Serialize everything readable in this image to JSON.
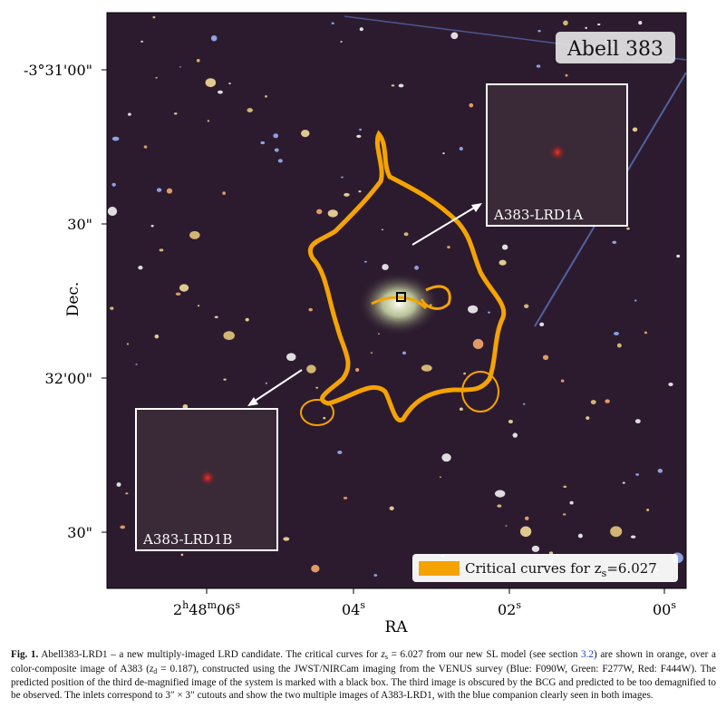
{
  "figure": {
    "title": "Abell 383",
    "y_axis": {
      "label": "Dec.",
      "ticks": [
        "-3°31'00\"",
        "30\"",
        "32'00\"",
        "30\""
      ]
    },
    "x_axis": {
      "label": "RA",
      "ticks": [
        [
          "2",
          "h",
          "48",
          "m",
          "06",
          "s"
        ],
        [
          "04",
          "s"
        ],
        [
          "02",
          "s"
        ],
        [
          "00",
          "s"
        ]
      ]
    },
    "insets": [
      {
        "label": "A383-LRD1A"
      },
      {
        "label": "A383-LRD1B"
      }
    ],
    "legend": {
      "parts": [
        "Critical curves for z",
        "s",
        "=6.027"
      ],
      "color": "#f5a300"
    }
  },
  "caption": {
    "label": "Fig. 1.",
    "body": [
      {
        "text": "Abell383-LRD1 – a new multiply-imaged LRD candidate. The critical curves for ",
        "style": "normal"
      },
      {
        "text": "z",
        "style": "italic"
      },
      {
        "text": "s",
        "style": "sub"
      },
      {
        "text": " = 6.027 from our new SL model (see section ",
        "style": "normal"
      },
      {
        "text": "3.2",
        "style": "link"
      },
      {
        "text": ") are shown in orange, over a color-composite image of A383 (",
        "style": "normal"
      },
      {
        "text": "z",
        "style": "italic"
      },
      {
        "text": "d",
        "style": "sub"
      },
      {
        "text": " = 0.187), constructed using the JWST/NIRCam imaging from the VENUS survey (Blue: F090W, Green: F277W, Red: F444W). The predicted position of the third de-magnified image of the system is marked with a black box. The third image is obscured by the BCG and predicted to be too demagnified to be observed. The inlets correspond to 3″ × 3″ cutouts and show the two multiple images of A383-LRD1, with the blue companion clearly seen in both images.",
        "style": "normal"
      }
    ]
  }
}
